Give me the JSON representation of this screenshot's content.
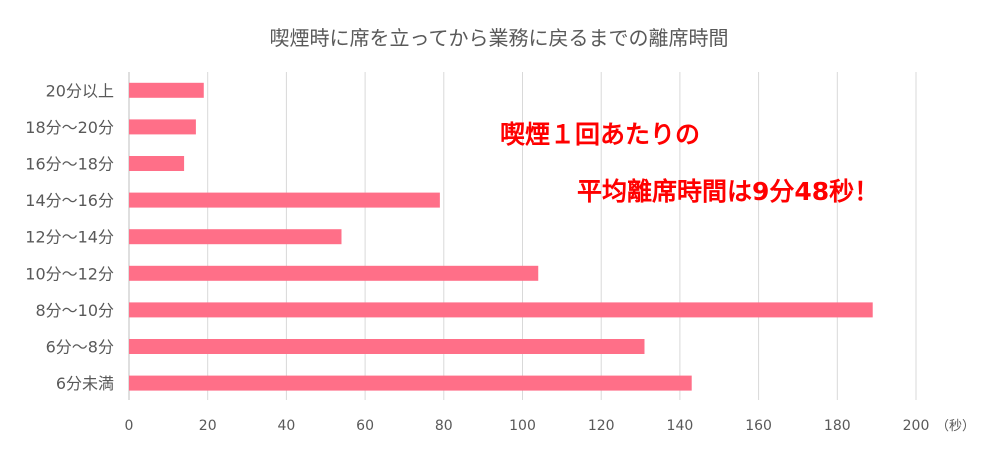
{
  "callout": {
    "line1": "喫煙１回あたりの",
    "line2": "平均離席時間は9分48秒！"
  },
  "chart_data": {
    "type": "bar",
    "orientation": "horizontal",
    "title": "喫煙時に席を立ってから業務に戻るまでの離席時間",
    "categories": [
      "20分以上",
      "18分～20分",
      "16分～18分",
      "14分～16分",
      "12分～14分",
      "10分～12分",
      "8分～10分",
      "6分～8分",
      "6分未満"
    ],
    "values": [
      19,
      17,
      14,
      79,
      54,
      104,
      189,
      131,
      143
    ],
    "xlim": [
      0,
      200
    ],
    "xticks": [
      0,
      20,
      40,
      60,
      80,
      100,
      120,
      140,
      160,
      180,
      200
    ],
    "xunit": "（秒）",
    "grid": true,
    "bar_color": "#ff6f88",
    "grid_color": "#d9d9d9",
    "axis_color": "#bfbfbf"
  }
}
